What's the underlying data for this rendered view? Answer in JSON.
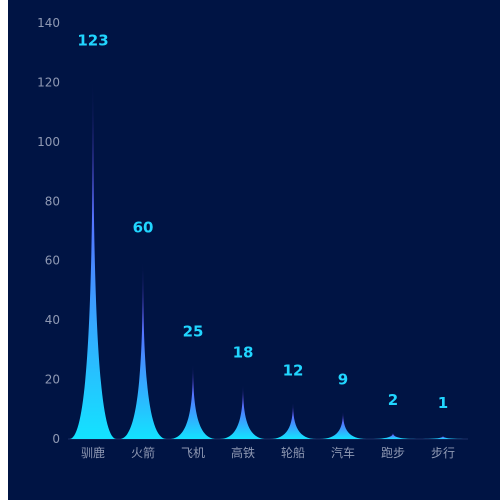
{
  "colors": {
    "background": "#001444",
    "spike_top": "#8b38ff",
    "spike_mid": "#4f7cff",
    "spike_bottom": "#13e3ff",
    "label": "#21d6ff",
    "axis_text": "#8f99b3"
  },
  "chart_data": {
    "type": "bar",
    "title": "",
    "xlabel": "",
    "ylabel": "",
    "categories": [
      "驯鹿",
      "火箭",
      "飞机",
      "高铁",
      "轮船",
      "汽车",
      "跑步",
      "步行"
    ],
    "values": [
      123,
      60,
      25,
      18,
      12,
      9,
      2,
      1
    ],
    "ylim": [
      0,
      140
    ],
    "yticks": [
      0,
      20,
      40,
      60,
      80,
      100,
      120,
      140
    ],
    "grid": false,
    "legend": "none"
  }
}
